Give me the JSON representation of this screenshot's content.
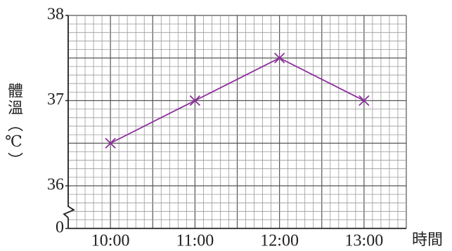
{
  "chart_data": {
    "type": "line",
    "y_label": "體溫（℃）",
    "x_label": "時間",
    "categories": [
      "10:00",
      "11:00",
      "12:00",
      "13:00"
    ],
    "values": [
      36.5,
      37,
      37.5,
      37
    ],
    "color": "#8b2d9b",
    "ylim": [
      35.5,
      38
    ],
    "yticks": [
      {
        "value": 35.5,
        "label": "0"
      },
      36,
      37,
      38
    ],
    "axis_break": true,
    "grid": true
  }
}
